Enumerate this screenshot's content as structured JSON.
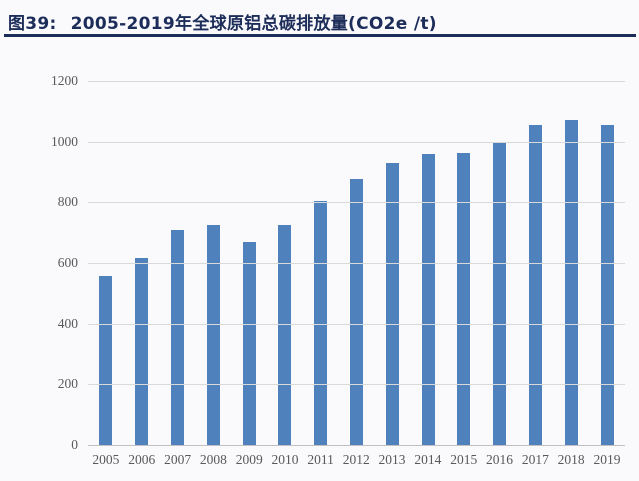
{
  "figure": {
    "label": "图39:",
    "title": "2005-2019年全球原铝总碳排放量(CO2e /t)"
  },
  "chart_data": {
    "type": "bar",
    "title": "2005-2019年全球原铝总碳排放量(CO2e /t)",
    "categories": [
      "2005",
      "2006",
      "2007",
      "2008",
      "2009",
      "2010",
      "2011",
      "2012",
      "2013",
      "2014",
      "2015",
      "2016",
      "2017",
      "2018",
      "2019"
    ],
    "values": [
      556,
      618,
      708,
      726,
      670,
      727,
      806,
      878,
      929,
      960,
      964,
      995,
      1054,
      1071,
      1054
    ],
    "xlabel": "",
    "ylabel": "",
    "ylim": [
      0,
      1200
    ],
    "yticks": [
      0,
      200,
      400,
      600,
      800,
      1000,
      1200
    ],
    "grid": "horizontal",
    "legend": "none",
    "bar_color": "#4f81bd",
    "grid_color": "#d9d9d9",
    "axis_color": "#c0bfc1",
    "tick_label_color": "#595959",
    "title_color": "#1c2d59",
    "background_color": "#faf9fb"
  }
}
